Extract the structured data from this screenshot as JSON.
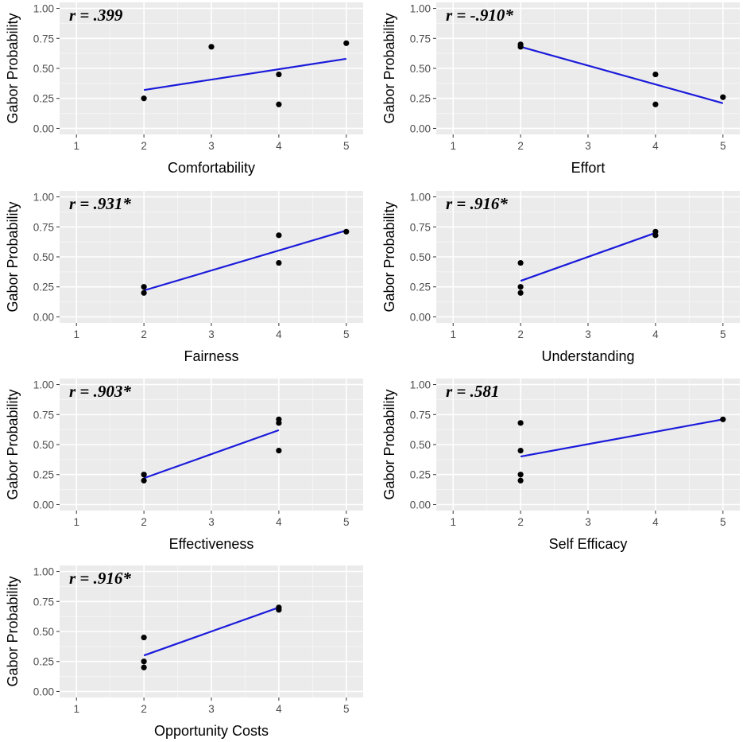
{
  "colors": {
    "panel_bg": "#ebebeb",
    "grid_major": "#ffffff",
    "grid_minor": "#f5f5f5",
    "point": "#000000",
    "fit_line": "#1a1adb",
    "tick_text": "#4d4d4d"
  },
  "chart_data": [
    {
      "type": "scatter",
      "xlabel": "Comfortability",
      "ylabel": "Gabor Probability",
      "annotation": "r = .399",
      "xlim": [
        0.75,
        5.25
      ],
      "ylim": [
        -0.05,
        1.05
      ],
      "xticks": [
        "1",
        "2",
        "3",
        "4",
        "5"
      ],
      "yticks": [
        "0.00",
        "0.25",
        "0.50",
        "0.75",
        "1.00"
      ],
      "points": [
        {
          "x": 2,
          "y": 0.25
        },
        {
          "x": 3,
          "y": 0.68
        },
        {
          "x": 4,
          "y": 0.45
        },
        {
          "x": 4,
          "y": 0.2
        },
        {
          "x": 5,
          "y": 0.71
        }
      ],
      "fit": {
        "x1": 2,
        "y1": 0.32,
        "x2": 5,
        "y2": 0.58
      }
    },
    {
      "type": "scatter",
      "xlabel": "Effort",
      "ylabel": "Gabor Probability",
      "annotation": "r = -.910*",
      "xlim": [
        0.75,
        5.25
      ],
      "ylim": [
        -0.05,
        1.05
      ],
      "xticks": [
        "1",
        "2",
        "3",
        "4",
        "5"
      ],
      "yticks": [
        "0.00",
        "0.25",
        "0.50",
        "0.75",
        "1.00"
      ],
      "points": [
        {
          "x": 2,
          "y": 0.7
        },
        {
          "x": 2,
          "y": 0.68
        },
        {
          "x": 4,
          "y": 0.45
        },
        {
          "x": 4,
          "y": 0.2
        },
        {
          "x": 5,
          "y": 0.26
        }
      ],
      "fit": {
        "x1": 2,
        "y1": 0.68,
        "x2": 5,
        "y2": 0.21
      }
    },
    {
      "type": "scatter",
      "xlabel": "Fairness",
      "ylabel": "Gabor Probability",
      "annotation": "r = .931*",
      "xlim": [
        0.75,
        5.25
      ],
      "ylim": [
        -0.05,
        1.05
      ],
      "xticks": [
        "1",
        "2",
        "3",
        "4",
        "5"
      ],
      "yticks": [
        "0.00",
        "0.25",
        "0.50",
        "0.75",
        "1.00"
      ],
      "points": [
        {
          "x": 2,
          "y": 0.25
        },
        {
          "x": 2,
          "y": 0.2
        },
        {
          "x": 4,
          "y": 0.68
        },
        {
          "x": 4,
          "y": 0.45
        },
        {
          "x": 5,
          "y": 0.71
        }
      ],
      "fit": {
        "x1": 2,
        "y1": 0.22,
        "x2": 5,
        "y2": 0.72
      }
    },
    {
      "type": "scatter",
      "xlabel": "Understanding",
      "ylabel": "Gabor Probability",
      "annotation": "r = .916*",
      "xlim": [
        0.75,
        5.25
      ],
      "ylim": [
        -0.05,
        1.05
      ],
      "xticks": [
        "1",
        "2",
        "3",
        "4",
        "5"
      ],
      "yticks": [
        "0.00",
        "0.25",
        "0.50",
        "0.75",
        "1.00"
      ],
      "points": [
        {
          "x": 2,
          "y": 0.45
        },
        {
          "x": 2,
          "y": 0.25
        },
        {
          "x": 2,
          "y": 0.2
        },
        {
          "x": 4,
          "y": 0.71
        },
        {
          "x": 4,
          "y": 0.68
        }
      ],
      "fit": {
        "x1": 2,
        "y1": 0.3,
        "x2": 4,
        "y2": 0.7
      }
    },
    {
      "type": "scatter",
      "xlabel": "Effectiveness",
      "ylabel": "Gabor Probability",
      "annotation": "r = .903*",
      "xlim": [
        0.75,
        5.25
      ],
      "ylim": [
        -0.05,
        1.05
      ],
      "xticks": [
        "1",
        "2",
        "3",
        "4",
        "5"
      ],
      "yticks": [
        "0.00",
        "0.25",
        "0.50",
        "0.75",
        "1.00"
      ],
      "points": [
        {
          "x": 2,
          "y": 0.25
        },
        {
          "x": 2,
          "y": 0.2
        },
        {
          "x": 4,
          "y": 0.71
        },
        {
          "x": 4,
          "y": 0.68
        },
        {
          "x": 4,
          "y": 0.45
        }
      ],
      "fit": {
        "x1": 2,
        "y1": 0.22,
        "x2": 4,
        "y2": 0.62
      }
    },
    {
      "type": "scatter",
      "xlabel": "Self Efficacy",
      "ylabel": "Gabor Probability",
      "annotation": "r = .581",
      "xlim": [
        0.75,
        5.25
      ],
      "ylim": [
        -0.05,
        1.05
      ],
      "xticks": [
        "1",
        "2",
        "3",
        "4",
        "5"
      ],
      "yticks": [
        "0.00",
        "0.25",
        "0.50",
        "0.75",
        "1.00"
      ],
      "points": [
        {
          "x": 2,
          "y": 0.68
        },
        {
          "x": 2,
          "y": 0.45
        },
        {
          "x": 2,
          "y": 0.25
        },
        {
          "x": 2,
          "y": 0.2
        },
        {
          "x": 5,
          "y": 0.71
        }
      ],
      "fit": {
        "x1": 2,
        "y1": 0.4,
        "x2": 5,
        "y2": 0.71
      }
    },
    {
      "type": "scatter",
      "xlabel": "Opportunity Costs",
      "ylabel": "Gabor Probability",
      "annotation": "r = .916*",
      "xlim": [
        0.75,
        5.25
      ],
      "ylim": [
        -0.05,
        1.05
      ],
      "xticks": [
        "1",
        "2",
        "3",
        "4",
        "5"
      ],
      "yticks": [
        "0.00",
        "0.25",
        "0.50",
        "0.75",
        "1.00"
      ],
      "points": [
        {
          "x": 2,
          "y": 0.45
        },
        {
          "x": 2,
          "y": 0.25
        },
        {
          "x": 2,
          "y": 0.2
        },
        {
          "x": 4,
          "y": 0.7
        },
        {
          "x": 4,
          "y": 0.68
        }
      ],
      "fit": {
        "x1": 2,
        "y1": 0.3,
        "x2": 4,
        "y2": 0.7
      }
    }
  ]
}
